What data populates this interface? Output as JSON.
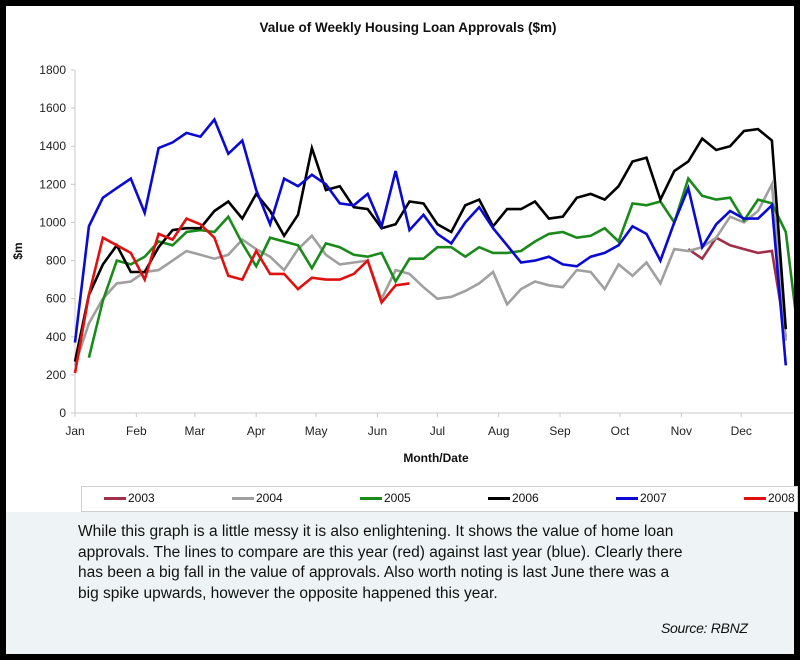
{
  "chart_data": {
    "type": "line",
    "title": "Value of Weekly Housing Loan Approvals ($m)",
    "xlabel": "Month/Date",
    "ylabel": "$m",
    "ylim": [
      0,
      1800
    ],
    "yticks": [
      0,
      200,
      400,
      600,
      800,
      1000,
      1200,
      1400,
      1600,
      1800
    ],
    "x_unit": "week of year (1-52)",
    "month_ticks": [
      {
        "label": "Jan",
        "week": 1
      },
      {
        "label": "Feb",
        "week": 5.4
      },
      {
        "label": "Mar",
        "week": 9.6
      },
      {
        "label": "Apr",
        "week": 14
      },
      {
        "label": "May",
        "week": 18.3
      },
      {
        "label": "Jun",
        "week": 22.7
      },
      {
        "label": "Jul",
        "week": 27
      },
      {
        "label": "Aug",
        "week": 31.4
      },
      {
        "label": "Sep",
        "week": 35.8
      },
      {
        "label": "Oct",
        "week": 40.1
      },
      {
        "label": "Nov",
        "week": 44.5
      },
      {
        "label": "Dec",
        "week": 48.8
      }
    ],
    "grid": false,
    "legend_position": "bottom",
    "series": [
      {
        "name": "2003",
        "color": "#a0304a",
        "start_week": 45,
        "values": [
          860,
          810,
          920,
          880,
          860,
          840,
          850,
          400
        ]
      },
      {
        "name": "2004",
        "color": "#a0a0a0",
        "start_week": 1,
        "values": [
          250,
          470,
          600,
          680,
          690,
          740,
          750,
          800,
          850,
          830,
          810,
          830,
          910,
          860,
          820,
          750,
          860,
          930,
          830,
          780,
          790,
          800,
          600,
          750,
          730,
          660,
          600,
          610,
          640,
          680,
          740,
          570,
          650,
          690,
          670,
          660,
          750,
          740,
          650,
          780,
          720,
          790,
          680,
          860,
          850,
          870,
          920,
          1030,
          1000,
          1060,
          1200,
          380
        ]
      },
      {
        "name": "2005",
        "color": "#1a8a1a",
        "start_week": 2,
        "values": [
          290,
          590,
          800,
          780,
          820,
          900,
          880,
          950,
          960,
          950,
          1030,
          890,
          770,
          920,
          900,
          880,
          760,
          890,
          870,
          830,
          820,
          840,
          690,
          810,
          810,
          870,
          870,
          820,
          870,
          840,
          840,
          850,
          900,
          940,
          950,
          920,
          930,
          970,
          900,
          1100,
          1090,
          1110,
          1000,
          1230,
          1140,
          1120,
          1130,
          1010,
          1120,
          1100,
          950,
          350
        ]
      },
      {
        "name": "2006",
        "color": "#000000",
        "start_week": 1,
        "values": [
          270,
          620,
          780,
          880,
          740,
          740,
          870,
          960,
          970,
          970,
          1060,
          1110,
          1020,
          1150,
          1060,
          930,
          1040,
          1390,
          1170,
          1190,
          1080,
          1070,
          970,
          990,
          1110,
          1100,
          990,
          950,
          1090,
          1120,
          980,
          1070,
          1070,
          1110,
          1020,
          1030,
          1130,
          1150,
          1120,
          1190,
          1320,
          1340,
          1120,
          1270,
          1320,
          1440,
          1380,
          1400,
          1480,
          1490,
          1430,
          440
        ]
      },
      {
        "name": "2007",
        "color": "#0a0ad2",
        "start_week": 1,
        "values": [
          370,
          980,
          1130,
          1180,
          1230,
          1050,
          1390,
          1420,
          1470,
          1450,
          1540,
          1360,
          1430,
          1170,
          990,
          1230,
          1190,
          1250,
          1200,
          1100,
          1090,
          1150,
          980,
          1270,
          960,
          1040,
          940,
          890,
          1000,
          1080,
          970,
          880,
          790,
          800,
          820,
          780,
          770,
          820,
          840,
          880,
          980,
          940,
          800,
          1000,
          1180,
          870,
          990,
          1060,
          1020,
          1020,
          1090,
          250
        ]
      },
      {
        "name": "2008",
        "color": "#e01010",
        "start_week": 1,
        "values": [
          210,
          620,
          920,
          880,
          840,
          700,
          940,
          910,
          1020,
          990,
          920,
          720,
          700,
          850,
          730,
          730,
          650,
          710,
          700,
          700,
          730,
          800,
          580,
          670,
          680
        ]
      }
    ]
  },
  "legend": {
    "items": [
      "2003",
      "2004",
      "2005",
      "2006",
      "2007",
      "2008"
    ]
  },
  "note": {
    "text": "While this graph is a little messy it is also enlightening. It shows the value of home loan approvals. The lines to compare are this year (red) against last year (blue). Clearly there has been a big fall in the value of approvals. Also worth noting is last June there was a big spike upwards, however the opposite happened this year.",
    "source": "Source: RBNZ"
  }
}
